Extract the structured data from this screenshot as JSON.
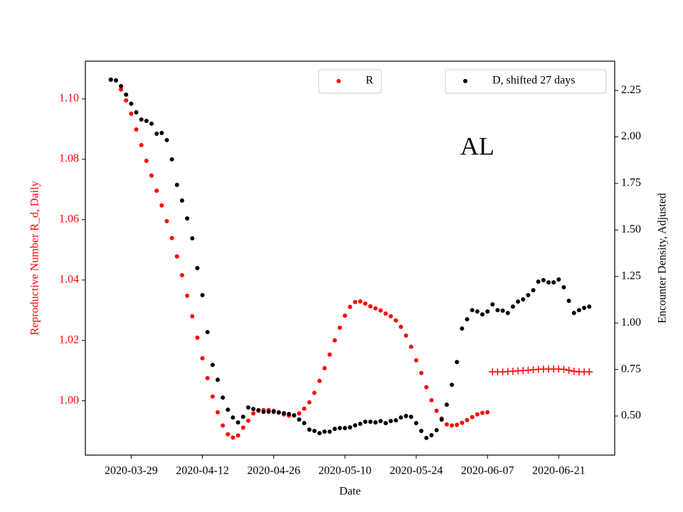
{
  "chart_data": {
    "type": "scatter",
    "annotations": [
      {
        "text": "AL",
        "x": "2020-06-05",
        "y": 1.0835
      }
    ],
    "xlabel": "Date",
    "ylabel": "Reproductive Number R_d, Daily",
    "y2label": "Encounter Density, Adjusted",
    "x": [
      "2020-03-25",
      "2020-03-26",
      "2020-03-27",
      "2020-03-28",
      "2020-03-29",
      "2020-03-30",
      "2020-03-31",
      "2020-04-01",
      "2020-04-02",
      "2020-04-03",
      "2020-04-04",
      "2020-04-05",
      "2020-04-06",
      "2020-04-07",
      "2020-04-08",
      "2020-04-09",
      "2020-04-10",
      "2020-04-11",
      "2020-04-12",
      "2020-04-13",
      "2020-04-14",
      "2020-04-15",
      "2020-04-16",
      "2020-04-17",
      "2020-04-18",
      "2020-04-19",
      "2020-04-20",
      "2020-04-21",
      "2020-04-22",
      "2020-04-23",
      "2020-04-24",
      "2020-04-25",
      "2020-04-26",
      "2020-04-27",
      "2020-04-28",
      "2020-04-29",
      "2020-04-30",
      "2020-05-01",
      "2020-05-02",
      "2020-05-03",
      "2020-05-04",
      "2020-05-05",
      "2020-05-06",
      "2020-05-07",
      "2020-05-08",
      "2020-05-09",
      "2020-05-10",
      "2020-05-11",
      "2020-05-12",
      "2020-05-13",
      "2020-05-14",
      "2020-05-15",
      "2020-05-16",
      "2020-05-17",
      "2020-05-18",
      "2020-05-19",
      "2020-05-20",
      "2020-05-21",
      "2020-05-22",
      "2020-05-23",
      "2020-05-24",
      "2020-05-25",
      "2020-05-26",
      "2020-05-27",
      "2020-05-28",
      "2020-05-29",
      "2020-05-30",
      "2020-05-31",
      "2020-06-01",
      "2020-06-02",
      "2020-06-03",
      "2020-06-04",
      "2020-06-05",
      "2020-06-06",
      "2020-06-07",
      "2020-06-08",
      "2020-06-09",
      "2020-06-10",
      "2020-06-11",
      "2020-06-12",
      "2020-06-13",
      "2020-06-14",
      "2020-06-15",
      "2020-06-16",
      "2020-06-17",
      "2020-06-18",
      "2020-06-19",
      "2020-06-20",
      "2020-06-21",
      "2020-06-22",
      "2020-06-23",
      "2020-06-24",
      "2020-06-25",
      "2020-06-26",
      "2020-06-27"
    ],
    "series": [
      {
        "name": "R",
        "color": "#ff0000",
        "marker": "dot",
        "axis": "y",
        "legend": "upper center",
        "values": [
          1.1064,
          1.1061,
          1.1031,
          1.0995,
          1.0951,
          1.0899,
          1.0847,
          1.0795,
          1.0746,
          1.0696,
          1.0647,
          1.0595,
          1.0539,
          1.0478,
          1.0416,
          1.0348,
          1.028,
          1.0209,
          1.0141,
          1.0075,
          1.0014,
          0.9962,
          0.9918,
          0.9889,
          0.9878,
          0.9885,
          0.9911,
          0.9934,
          0.9958,
          0.9967,
          0.9969,
          0.9969,
          0.9967,
          0.9962,
          0.9955,
          0.9951,
          0.9951,
          0.9958,
          0.9974,
          0.9995,
          1.0026,
          1.0066,
          1.0108,
          1.0153,
          1.02,
          1.0242,
          1.0282,
          1.0311,
          1.0327,
          1.0329,
          1.0322,
          1.0313,
          1.0306,
          1.0299,
          1.0289,
          1.028,
          1.0266,
          1.0245,
          1.0216,
          1.0179,
          1.0134,
          1.0092,
          1.0045,
          1.0002,
          0.9967,
          0.9941,
          0.9922,
          0.9918,
          0.992,
          0.9927,
          0.9936,
          0.9946,
          0.9955,
          0.996,
          0.9962,
          null,
          null,
          null,
          null,
          null,
          null,
          null,
          null,
          null,
          null,
          null,
          null,
          null,
          null,
          null,
          null,
          null,
          null,
          null,
          null
        ]
      },
      {
        "color": "#ff0000",
        "marker": "plus",
        "axis": "y",
        "values": [
          null,
          null,
          null,
          null,
          null,
          null,
          null,
          null,
          null,
          null,
          null,
          null,
          null,
          null,
          null,
          null,
          null,
          null,
          null,
          null,
          null,
          null,
          null,
          null,
          null,
          null,
          null,
          null,
          null,
          null,
          null,
          null,
          null,
          null,
          null,
          null,
          null,
          null,
          null,
          null,
          null,
          null,
          null,
          null,
          null,
          null,
          null,
          null,
          null,
          null,
          null,
          null,
          null,
          null,
          null,
          null,
          null,
          null,
          null,
          null,
          null,
          null,
          null,
          null,
          null,
          null,
          null,
          null,
          null,
          null,
          null,
          null,
          null,
          null,
          null,
          1.0096,
          1.0096,
          1.0096,
          1.0097,
          1.0098,
          1.0099,
          1.01,
          1.0101,
          1.0103,
          1.0104,
          1.0105,
          1.0105,
          1.0105,
          1.0105,
          1.0104,
          1.0101,
          1.0098,
          1.0096,
          1.0096,
          1.0096
        ]
      },
      {
        "name": "D, shifted 27 days",
        "color": "#000000",
        "marker": "dot",
        "axis": "y2",
        "legend": "upper right",
        "values": [
          2.307,
          2.304,
          2.273,
          2.227,
          2.178,
          2.132,
          2.093,
          2.086,
          2.071,
          2.017,
          2.021,
          1.983,
          1.879,
          1.742,
          1.658,
          1.562,
          1.455,
          1.295,
          1.15,
          0.951,
          0.775,
          0.695,
          0.599,
          0.534,
          0.492,
          0.466,
          0.496,
          0.546,
          0.538,
          0.531,
          0.523,
          0.523,
          0.523,
          0.519,
          0.515,
          0.511,
          0.504,
          0.481,
          0.462,
          0.427,
          0.42,
          0.408,
          0.416,
          0.416,
          0.431,
          0.435,
          0.435,
          0.439,
          0.45,
          0.458,
          0.469,
          0.469,
          0.466,
          0.473,
          0.462,
          0.473,
          0.477,
          0.492,
          0.5,
          0.496,
          0.462,
          0.42,
          0.382,
          0.397,
          0.424,
          0.481,
          0.561,
          0.668,
          0.79,
          0.97,
          1.02,
          1.069,
          1.062,
          1.046,
          1.062,
          1.1,
          1.069,
          1.066,
          1.054,
          1.088,
          1.115,
          1.127,
          1.15,
          1.176,
          1.222,
          1.23,
          1.218,
          1.218,
          1.234,
          1.192,
          1.119,
          1.054,
          1.069,
          1.081,
          1.088
        ]
      }
    ],
    "xlim": [
      "2020-03-20",
      "2020-07-02"
    ],
    "xticks": [
      "2020-03-29",
      "2020-04-12",
      "2020-04-26",
      "2020-05-10",
      "2020-05-24",
      "2020-06-07",
      "2020-06-21"
    ],
    "ylim": [
      0.982,
      1.1125
    ],
    "yticks": [
      {
        "value": 1,
        "label": "1.00"
      },
      1.02,
      1.04,
      1.06,
      1.08,
      {
        "value": 1.1,
        "label": "1.10"
      }
    ],
    "y2lim": [
      0.29,
      2.407
    ],
    "y2ticks": [
      {
        "value": 0.5,
        "label": "0.50"
      },
      0.75,
      {
        "value": 1,
        "label": "1.00"
      },
      1.25,
      {
        "value": 1.5,
        "label": "1.50"
      },
      1.75,
      {
        "value": 2,
        "label": "2.00"
      },
      2.25
    ]
  }
}
